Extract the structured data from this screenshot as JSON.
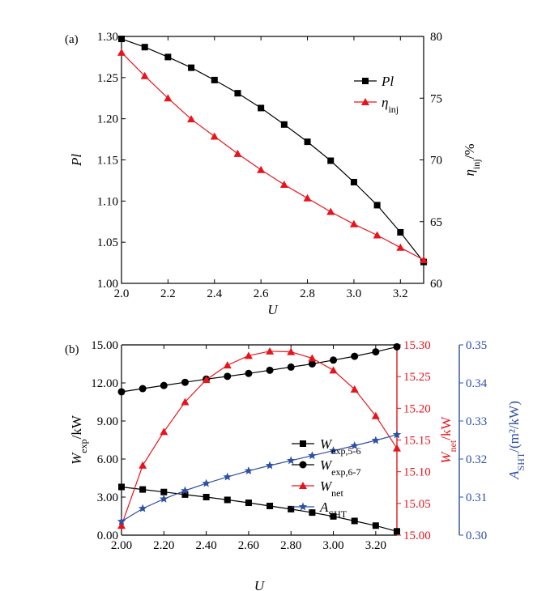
{
  "chart_data": [
    {
      "panel_label": "(a)",
      "type": "line",
      "x": [
        2.0,
        2.1,
        2.2,
        2.3,
        2.4,
        2.5,
        2.6,
        2.7,
        2.8,
        2.9,
        3.0,
        3.1,
        3.2,
        3.3
      ],
      "xlim": [
        2.0,
        3.3
      ],
      "x_ticks": [
        "2.0",
        "2.2",
        "2.4",
        "2.6",
        "2.8",
        "3.0",
        "3.2"
      ],
      "xlabel": "U",
      "ylabel_left": "Pl",
      "ylabel_right": {
        "main": "η",
        "sub": "inj",
        "suffix": "/%"
      },
      "ylim_left": [
        1.0,
        1.3
      ],
      "ylim_right": [
        60,
        80
      ],
      "y_ticks_left": [
        "1.00",
        "1.05",
        "1.10",
        "1.15",
        "1.20",
        "1.25",
        "1.30"
      ],
      "y_ticks_right": [
        "60",
        "65",
        "70",
        "75",
        "80"
      ],
      "legend_position": "top-right",
      "series": [
        {
          "name": "Pl",
          "name_sub": "",
          "axis": "left",
          "color": "#000000",
          "marker": "square",
          "values": [
            1.297,
            1.287,
            1.275,
            1.262,
            1.247,
            1.231,
            1.213,
            1.193,
            1.172,
            1.149,
            1.123,
            1.095,
            1.062,
            1.026
          ]
        },
        {
          "name": "η",
          "name_sub": "inj",
          "axis": "right",
          "color": "#e8141b",
          "marker": "triangle",
          "values": [
            78.7,
            76.8,
            75.0,
            73.3,
            71.9,
            70.5,
            69.2,
            68.0,
            66.9,
            65.8,
            64.8,
            63.9,
            62.9,
            61.9
          ]
        }
      ]
    },
    {
      "panel_label": "(b)",
      "type": "line",
      "x": [
        2.0,
        2.1,
        2.2,
        2.3,
        2.4,
        2.5,
        2.6,
        2.7,
        2.8,
        2.9,
        3.0,
        3.1,
        3.2,
        3.3
      ],
      "xlim": [
        2.0,
        3.3
      ],
      "x_ticks": [
        "2.00",
        "2.20",
        "2.40",
        "2.60",
        "2.80",
        "3.00",
        "3.20"
      ],
      "xlabel": "U",
      "ylabel_left": {
        "main": "W",
        "sub": "exp",
        "suffix": "/kW"
      },
      "ylabel_mid": {
        "main": "W",
        "sub": "net",
        "suffix": "/kW"
      },
      "ylabel_right": {
        "main": "A",
        "sub": "SHT",
        "suffix": "/(m²/kW)"
      },
      "ylim_left": [
        0,
        15
      ],
      "ylim_mid": [
        15.0,
        15.3
      ],
      "ylim_right": [
        0.3,
        0.35
      ],
      "y_ticks_left": [
        "0.00",
        "3.00",
        "6.00",
        "9.00",
        "12.00",
        "15.00"
      ],
      "y_ticks_mid": [
        "15.00",
        "15.05",
        "15.10",
        "15.15",
        "15.20",
        "15.25",
        "15.30"
      ],
      "y_ticks_right": [
        "0.30",
        "0.31",
        "0.32",
        "0.33",
        "0.34",
        "0.35"
      ],
      "legend_position": "center-right",
      "series": [
        {
          "name": "W",
          "name_sub": "exp,5-6",
          "axis": "left",
          "color": "#000000",
          "marker": "square",
          "values": [
            3.8,
            3.6,
            3.4,
            3.2,
            3.0,
            2.78,
            2.55,
            2.3,
            2.05,
            1.78,
            1.48,
            1.12,
            0.75,
            0.3
          ]
        },
        {
          "name": "W",
          "name_sub": "exp,6-7",
          "axis": "left",
          "color": "#000000",
          "marker": "circle",
          "values": [
            11.3,
            11.55,
            11.8,
            12.05,
            12.3,
            12.52,
            12.75,
            13.0,
            13.25,
            13.5,
            13.8,
            14.1,
            14.45,
            14.85
          ]
        },
        {
          "name": "W",
          "name_sub": "net",
          "axis": "mid",
          "color": "#e8141b",
          "marker": "triangle",
          "values": [
            15.015,
            15.11,
            15.163,
            15.21,
            15.245,
            15.268,
            15.283,
            15.29,
            15.289,
            15.279,
            15.26,
            15.23,
            15.188,
            15.137
          ]
        },
        {
          "name": "A",
          "name_sub": "SHT",
          "axis": "right",
          "color": "#2e4fa3",
          "marker": "star",
          "values": [
            0.3036,
            0.307,
            0.3095,
            0.3117,
            0.3136,
            0.3153,
            0.3169,
            0.3183,
            0.3196,
            0.3209,
            0.3222,
            0.3235,
            0.3249,
            0.3264
          ]
        }
      ]
    }
  ],
  "colors": {
    "black": "#000000",
    "red": "#e8141b",
    "blue": "#2e4fa3"
  }
}
